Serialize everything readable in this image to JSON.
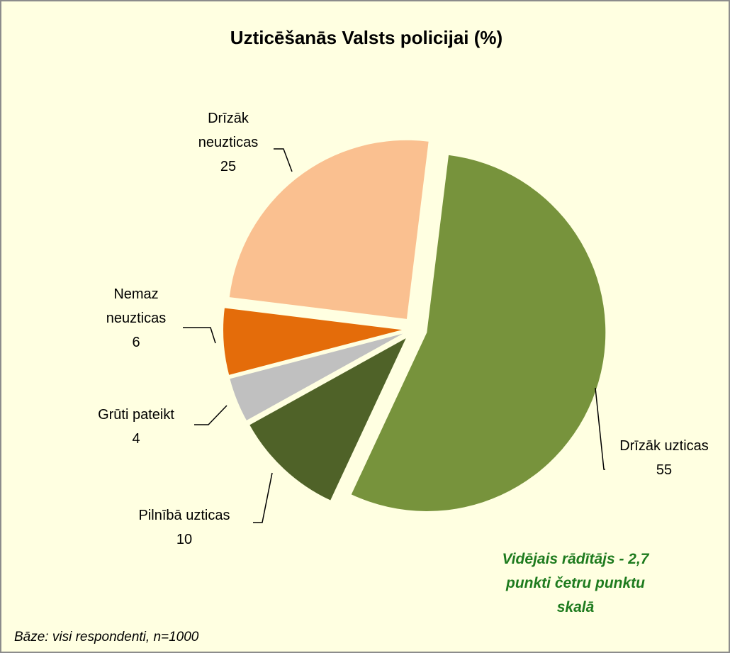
{
  "chart_data": {
    "type": "pie",
    "title": "Uzticēšanās Valsts policijai (%)",
    "categories": [
      "Drīzāk uzticas",
      "Pilnībā uzticas",
      "Grūti pateikt",
      "Nemaz neuzticas",
      "Drīzāk neuzticas"
    ],
    "values": [
      55,
      10,
      4,
      6,
      25
    ],
    "colors": [
      "#77933c",
      "#4f6228",
      "#c0c0c0",
      "#e46c0a",
      "#fac090"
    ],
    "annotation": [
      "Vidējais rādītājs - 2,7",
      "punkti četru punktu",
      "skalā"
    ],
    "footnote": "Bāze: visi respondenti, n=1000"
  }
}
